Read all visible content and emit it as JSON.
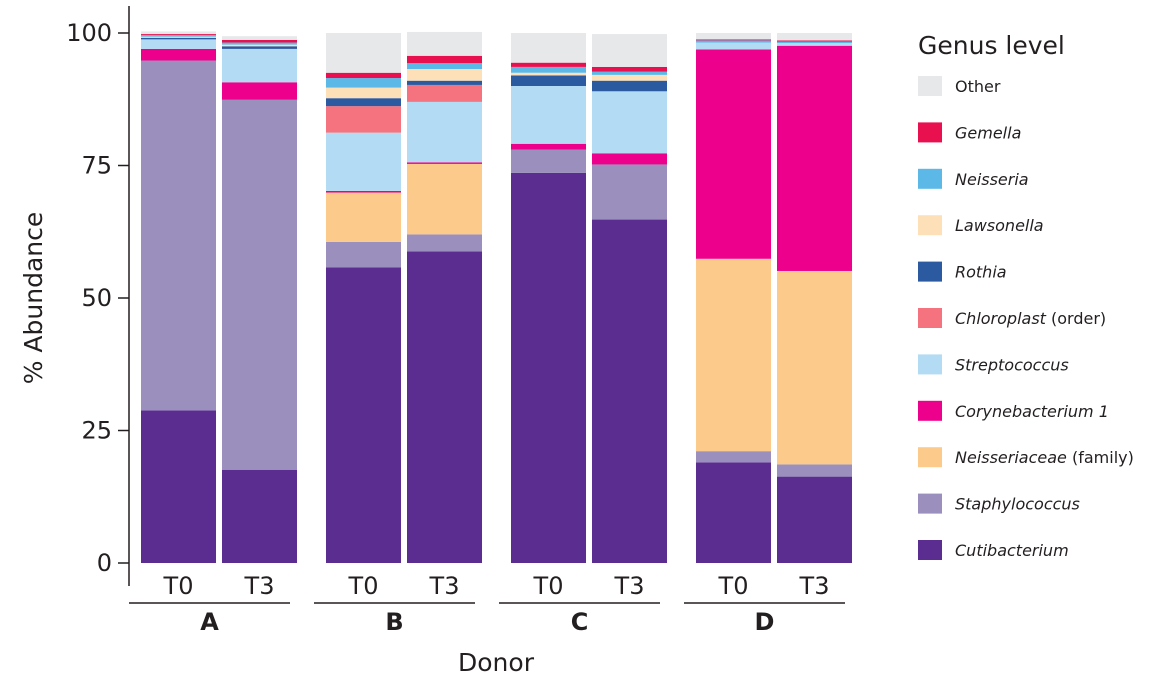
{
  "chart_data": {
    "type": "bar",
    "stacked": true,
    "ylabel": "% Abundance",
    "xlabel": "Donor",
    "ylim": [
      0,
      100
    ],
    "yticks": [
      0,
      25,
      50,
      75,
      100
    ],
    "legend": {
      "title": "Genus level",
      "placement": "right",
      "order": [
        "Other",
        "Gemella",
        "Neisseria",
        "Lawsonella",
        "Rothia",
        "Chloroplast",
        "Streptococcus",
        "Corynebacterium 1",
        "Neisseriaceae",
        "Staphylococcus",
        "Cutibacterium"
      ]
    },
    "series": [
      {
        "name": "Cutibacterium",
        "suffix": "",
        "color": "#5c2d91",
        "values": [
          28.8,
          17.6,
          55.8,
          58.8,
          73.6,
          64.8,
          19,
          16.3
        ]
      },
      {
        "name": "Staphylococcus",
        "suffix": "",
        "color": "#9a8fbd",
        "values": [
          66,
          69.8,
          4.8,
          3.2,
          4.4,
          10.4,
          2.1,
          2.3
        ]
      },
      {
        "name": "Neisseriaceae",
        "suffix": " (family)",
        "color": "#fccb8b",
        "values": [
          0,
          0,
          9.3,
          13.3,
          0,
          0,
          36.3,
          36.5
        ]
      },
      {
        "name": "Corynebacterium 1",
        "suffix": "",
        "color": "#ec008c",
        "values": [
          2.2,
          3.3,
          0.3,
          0.3,
          1.1,
          2.1,
          39.5,
          42.5
        ]
      },
      {
        "name": "Streptococcus",
        "suffix": "",
        "color": "#b3dbf4",
        "values": [
          1.8,
          6.3,
          11,
          11.4,
          10.9,
          11.7,
          1.3,
          0.5
        ]
      },
      {
        "name": "Chloroplast",
        "suffix": " (order)",
        "color": "#f4737e",
        "values": [
          0,
          0,
          5,
          3.2,
          0,
          0,
          0,
          0
        ]
      },
      {
        "name": "Rothia",
        "suffix": "",
        "color": "#2c5aa0",
        "values": [
          0.3,
          0.5,
          1.5,
          0.8,
          2,
          2,
          0,
          0
        ]
      },
      {
        "name": "Lawsonella",
        "suffix": "",
        "color": "#fde0b8",
        "values": [
          0.2,
          0.3,
          2,
          2.2,
          0.5,
          1.1,
          0,
          0
        ]
      },
      {
        "name": "Neisseria",
        "suffix": "",
        "color": "#5cb8e6",
        "values": [
          0.3,
          0.4,
          1.8,
          1.1,
          1.1,
          0.6,
          0.4,
          0.3
        ]
      },
      {
        "name": "Gemella",
        "suffix": "",
        "color": "#e8104f",
        "values": [
          0.2,
          0.5,
          1,
          1.4,
          0.8,
          0.9,
          0.2,
          0.2
        ]
      },
      {
        "name": "Other",
        "suffix": "",
        "color": "#e7e8ea",
        "values": [
          0.5,
          0.7,
          7.5,
          4.5,
          5.6,
          6.2,
          1.2,
          1.4
        ]
      }
    ],
    "groups": [
      {
        "label": "A",
        "bars": [
          "T0",
          "T3"
        ]
      },
      {
        "label": "B",
        "bars": [
          "T0",
          "T3"
        ]
      },
      {
        "label": "C",
        "bars": [
          "T0",
          "T3"
        ]
      },
      {
        "label": "D",
        "bars": [
          "T0",
          "T3"
        ]
      }
    ]
  }
}
